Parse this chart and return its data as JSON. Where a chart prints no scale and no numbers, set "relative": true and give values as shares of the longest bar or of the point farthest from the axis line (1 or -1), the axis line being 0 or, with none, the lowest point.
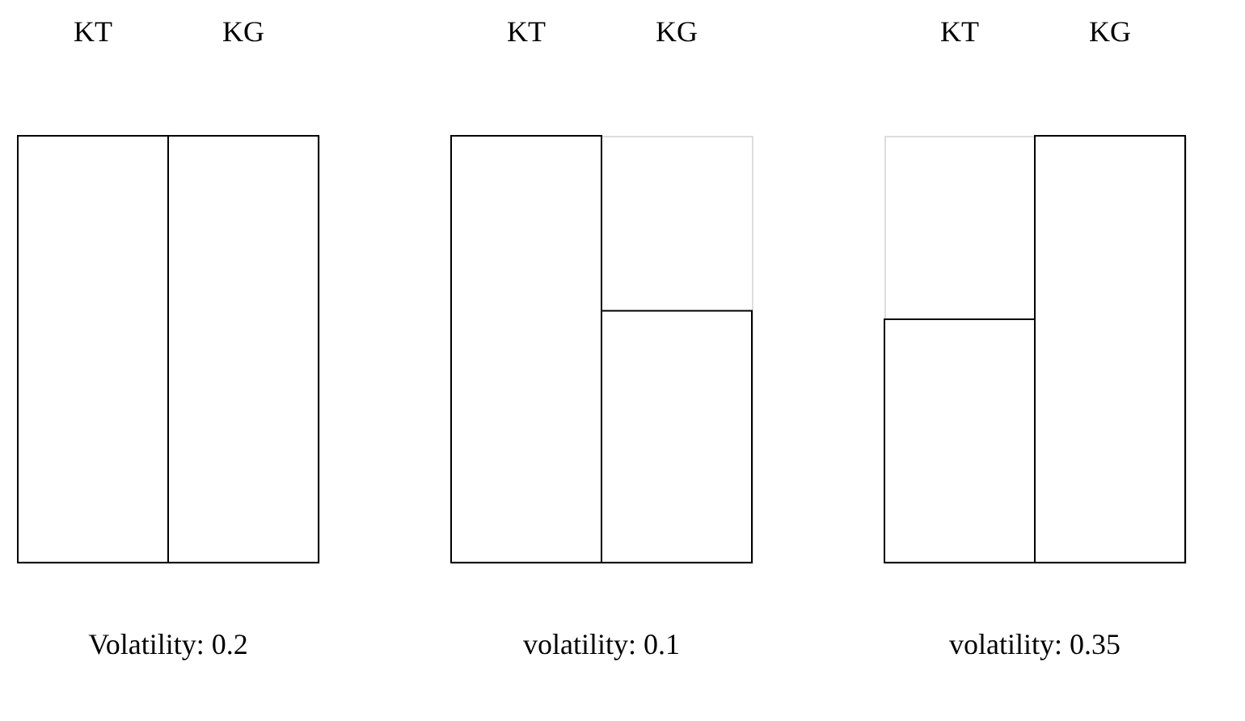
{
  "chart_data": [
    {
      "type": "bar",
      "title": "Volatility: 0.2",
      "categories": [
        "KT",
        "KG"
      ],
      "values": [
        1,
        1
      ],
      "relative": true,
      "color": "#ffffff"
    },
    {
      "type": "bar",
      "title": "volatility: 0.1",
      "categories": [
        "KT",
        "KG"
      ],
      "values": [
        1,
        0.59
      ],
      "relative": true,
      "color": "#ffffff"
    },
    {
      "type": "bar",
      "title": "volatility: 0.35",
      "categories": [
        "KT",
        "KG"
      ],
      "values": [
        0.57,
        1
      ],
      "relative": true,
      "color": "#ffffff"
    }
  ]
}
